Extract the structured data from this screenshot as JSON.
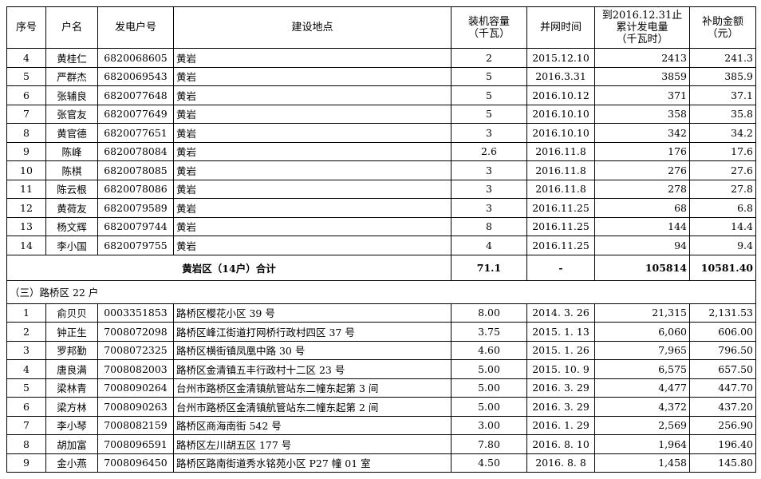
{
  "headers": [
    "序号",
    "户名",
    "发电户号",
    "建设地点",
    "装机容量\n（千瓦）",
    "并网时间",
    "到2016.12.31止\n累计发电量\n（千瓦时）",
    "补助金额\n（元）"
  ],
  "rows_a": [
    [
      "4",
      "黄桂仁",
      "6820068605",
      "黄岩",
      "2",
      "2015.12.10",
      "2413",
      "241.3"
    ],
    [
      "5",
      "严群杰",
      "6820069543",
      "黄岩",
      "5",
      "2016.3.31",
      "3859",
      "385.9"
    ],
    [
      "6",
      "张辅良",
      "6820077648",
      "黄岩",
      "5",
      "2016.10.12",
      "371",
      "37.1"
    ],
    [
      "7",
      "张官友",
      "6820077649",
      "黄岩",
      "5",
      "2016.10.10",
      "358",
      "35.8"
    ],
    [
      "8",
      "黄官德",
      "6820077651",
      "黄岩",
      "3",
      "2016.10.10",
      "342",
      "34.2"
    ],
    [
      "9",
      "陈峰",
      "6820078084",
      "黄岩",
      "2.6",
      "2016.11.8",
      "176",
      "17.6"
    ],
    [
      "10",
      "陈棋",
      "6820078085",
      "黄岩",
      "3",
      "2016.11.8",
      "276",
      "27.6"
    ],
    [
      "11",
      "陈云根",
      "6820078086",
      "黄岩",
      "3",
      "2016.11.8",
      "278",
      "27.8"
    ],
    [
      "12",
      "黄荷友",
      "6820079589",
      "黄岩",
      "3",
      "2016.11.25",
      "68",
      "6.8"
    ],
    [
      "13",
      "杨文辉",
      "6820079744",
      "黄岩",
      "8",
      "2016.11.25",
      "144",
      "14.4"
    ],
    [
      "14",
      "李小国",
      "6820079755",
      "黄岩",
      "4",
      "2016.11.25",
      "94",
      "9.4"
    ]
  ],
  "total": {
    "label": "黄岩区（14户）合计",
    "capacity": "71.1",
    "date": "-",
    "energy": "105814",
    "amount": "10581.40"
  },
  "section": "（三）路桥区 22 户",
  "rows_b": [
    [
      "1",
      "俞贝贝",
      "0003351853",
      " 路桥区樱花小区 39 号",
      "8.00",
      "2014. 3. 26",
      "21,315",
      "2,131.53"
    ],
    [
      "2",
      "钟正生",
      "7008072098",
      " 路桥区峰江街道打网桥行政村四区 37 号",
      "3.75",
      "2015. 1. 13",
      "6,060",
      "606.00"
    ],
    [
      "3",
      "罗邦勤",
      "7008072325",
      " 路桥区横街镇凤凰中路 30 号",
      "4.60",
      "2015. 1. 26",
      "7,965",
      "796.50"
    ],
    [
      "4",
      "唐良满",
      "7008082003",
      " 路桥区金清镇五丰行政村十二区 23 号",
      "5.00",
      "2015. 10. 9",
      "6,575",
      "657.50"
    ],
    [
      "5",
      "梁林青",
      "7008090264",
      "台州市路桥区金清镇航管站东二幢东起第 3 间",
      "5.00",
      "2016. 3. 29",
      "4,477",
      "447.70"
    ],
    [
      "6",
      "梁方林",
      "7008090263",
      "台州市路桥区金清镇航管站东二幢东起第 2 间",
      "5.00",
      "2016. 3. 29",
      "4,372",
      "437.20"
    ],
    [
      "7",
      "李小琴",
      "7008082159",
      " 路桥区商海南街 542 号",
      "3.00",
      "2016. 1. 29",
      "2,569",
      "256.90"
    ],
    [
      "8",
      "胡加富",
      "7008096591",
      " 路桥区左川胡五区 177 号",
      "7.80",
      "2016. 8. 10",
      "1,964",
      "196.40"
    ],
    [
      "9",
      "金小燕",
      "7008096450",
      " 路桥区路南街道秀水铭苑小区 P27 幢 01 室",
      "4.50",
      "2016. 8. 8",
      "1,458",
      "145.80"
    ]
  ]
}
